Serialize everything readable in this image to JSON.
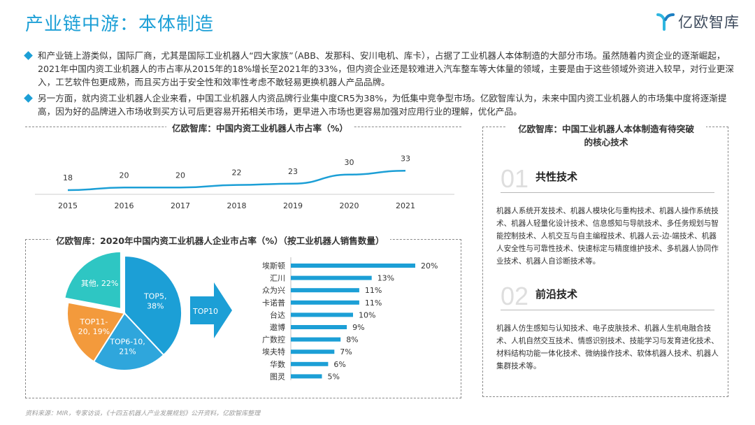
{
  "header": {
    "title": "产业链中游：本体制造",
    "logo_text": "亿欧智库"
  },
  "intro": {
    "paragraph1": "和产业链上游类似，国际厂商，尤其是国际工业机器人“四大家族”（ABB、发那科、安川电机、库卡），占据了工业机器人本体制造的大部分市场。虽然随着内资企业的逐渐崛起，2021年中国内资工业机器人的市占率从2015年的18%增长至2021年的33%，但内资企业还是较难进入汽车整车等大体量的领域，主要是由于这些领域外资进入较早，对行业更深入，工艺软件包更成熟，而且买方出于安全性和效率性考虑不敢轻易更换机器人产品品牌。",
    "paragraph2": "另一方面，就内资工业机器人企业来看，中国工业机器人内资品牌行业集中度CR5为38%，为低集中竞争型市场。亿欧智库认为，未来中国内资工业机器人的市场集中度将逐渐提高，因为好的品牌进入市场收到买方认可后更容易开拓相关市场，更早进入市场也更容易加强对应用行业的理解，优化产品。"
  },
  "share_chart": {
    "title": "亿欧智库：中国内资工业机器人市占率（%）"
  },
  "company_chart": {
    "title": "亿欧智库：2020年中国内资工业机器人企业市占率（%）（按工业机器人销售数量）",
    "arrow_label": "TOP10"
  },
  "core_tech": {
    "title_line1": "亿欧智库：中国工业机器人本体制造有待突破",
    "title_line2": "的核心技术",
    "sections": [
      {
        "number": "01",
        "name": "共性技术",
        "body": "机器人系统开发技术、机器人模块化与重构技术、机器人操作系统技术、机器人轻量化设计技术、信息感知与导航技术、多任务规划与智能控制技术、人机交互与自主编程技术、机器人云-边-端技术、机器人安全性与可靠性技术、快速标定与精度维护技术、多机器人协同作业技术、机器人自诊断技术等。"
      },
      {
        "number": "02",
        "name": "前沿技术",
        "body": "机器人仿生感知与认知技术、电子皮肤技术、机器人生机电融合技术、人机自然交互技术、情感识别技术、技能学习与发育进化技术、材料结构功能一体化技术、微纳操作技术、软体机器人技术、机器人集群技术等。"
      }
    ]
  },
  "footer": {
    "source": "资料来源：MIR，专家访谈，《十四五机器人产业发展规划》公开资料，亿欧智库整理"
  },
  "colors": {
    "accent": "#1c9fd6",
    "pie_top5": "#1c9fd6",
    "pie_top6_10": "#2fa6dc",
    "pie_top11_20": "#f39a3c",
    "pie_other": "#2ec6c3"
  },
  "chart_data": [
    {
      "type": "line",
      "title": "亿欧智库：中国内资工业机器人市占率（%）",
      "x": [
        "2015",
        "2016",
        "2017",
        "2018",
        "2019",
        "2020",
        "2021"
      ],
      "values": [
        18,
        20,
        20,
        22,
        23,
        30,
        33
      ],
      "xlabel": "",
      "ylabel": "",
      "ylim": [
        0,
        40
      ],
      "grid": false
    },
    {
      "type": "pie",
      "labels": [
        "TOP5,\n38%",
        "TOP6-10,\n21%",
        "TOP11-\n20, 19%",
        "其他, 22%"
      ],
      "names": [
        "TOP5",
        "TOP6-10",
        "TOP11-20",
        "其他"
      ],
      "values": [
        38,
        21,
        19,
        22
      ]
    },
    {
      "type": "bar",
      "orientation": "horizontal",
      "categories": [
        "埃斯顿",
        "汇川",
        "众为兴",
        "卡诺普",
        "台达",
        "遨博",
        "广数控",
        "埃夫特",
        "华数",
        "图灵"
      ],
      "values": [
        20,
        13,
        11,
        11,
        10,
        9,
        8,
        7,
        6,
        5
      ],
      "value_labels": [
        "20%",
        "13%",
        "11%",
        "11%",
        "10%",
        "9%",
        "8%",
        "7%",
        "6%",
        "5%"
      ],
      "xlim": [
        0,
        20
      ]
    }
  ]
}
